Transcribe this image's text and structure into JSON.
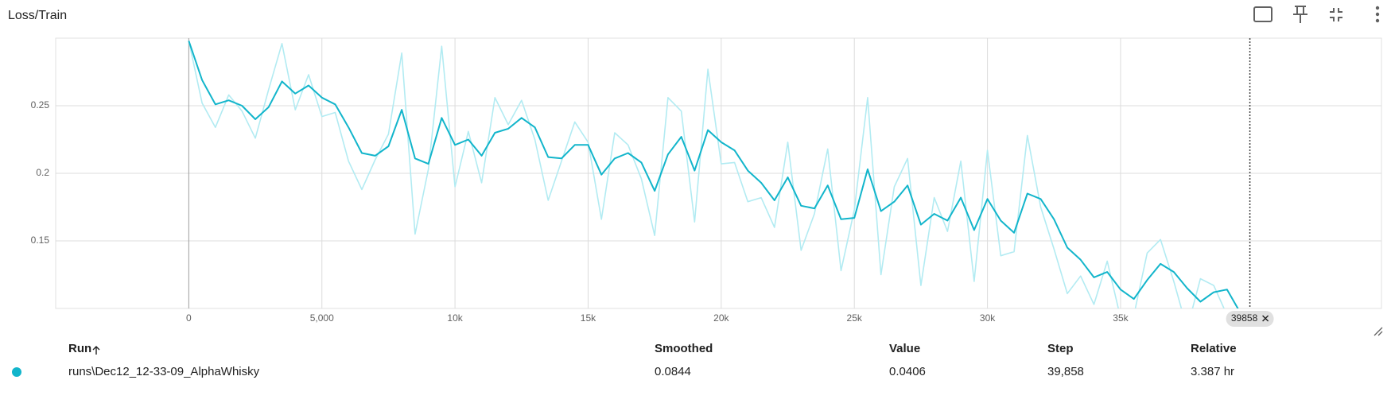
{
  "chart_data": {
    "type": "line",
    "title": "Loss/Train",
    "x": [
      0,
      500,
      1000,
      1500,
      2000,
      2500,
      3000,
      3500,
      4000,
      4500,
      5000,
      5500,
      6000,
      6500,
      7000,
      7500,
      8000,
      8500,
      9000,
      9500,
      10000,
      10500,
      11000,
      11500,
      12000,
      12500,
      13000,
      13500,
      14000,
      14500,
      15000,
      15500,
      16000,
      16500,
      17000,
      17500,
      18000,
      18500,
      19000,
      19500,
      20000,
      20500,
      21000,
      21500,
      22000,
      22500,
      23000,
      23500,
      24000,
      24500,
      25000,
      25500,
      26000,
      26500,
      27000,
      27500,
      28000,
      28500,
      29000,
      29500,
      30000,
      30500,
      31000,
      31500,
      32000,
      32500,
      33000,
      33500,
      34000,
      34500,
      35000,
      35500,
      36000,
      36500,
      37000,
      37500,
      38000,
      38500,
      39000,
      39858
    ],
    "series": [
      {
        "color": "#b2ebf2",
        "values": [
          0.298,
          0.252,
          0.234,
          0.258,
          0.246,
          0.226,
          0.262,
          0.296,
          0.247,
          0.273,
          0.242,
          0.245,
          0.209,
          0.188,
          0.21,
          0.229,
          0.289,
          0.155,
          0.203,
          0.294,
          0.19,
          0.231,
          0.193,
          0.256,
          0.236,
          0.254,
          0.225,
          0.18,
          0.209,
          0.238,
          0.223,
          0.166,
          0.23,
          0.221,
          0.196,
          0.154,
          0.256,
          0.246,
          0.164,
          0.277,
          0.207,
          0.208,
          0.179,
          0.182,
          0.16,
          0.223,
          0.143,
          0.17,
          0.218,
          0.128,
          0.173,
          0.256,
          0.125,
          0.19,
          0.211,
          0.117,
          0.182,
          0.157,
          0.209,
          0.12,
          0.217,
          0.139,
          0.142,
          0.228,
          0.175,
          0.144,
          0.111,
          0.124,
          0.103,
          0.135,
          0.093,
          0.095,
          0.141,
          0.151,
          0.12,
          0.085,
          0.122,
          0.117,
          0.095,
          0.0406
        ]
      },
      {
        "color": "#12b5cb",
        "values": [
          0.298,
          0.269,
          0.251,
          0.254,
          0.25,
          0.24,
          0.249,
          0.268,
          0.259,
          0.265,
          0.256,
          0.251,
          0.234,
          0.215,
          0.213,
          0.22,
          0.247,
          0.211,
          0.207,
          0.241,
          0.221,
          0.225,
          0.213,
          0.23,
          0.233,
          0.241,
          0.234,
          0.212,
          0.211,
          0.221,
          0.221,
          0.199,
          0.211,
          0.215,
          0.208,
          0.187,
          0.214,
          0.227,
          0.202,
          0.232,
          0.223,
          0.217,
          0.202,
          0.193,
          0.18,
          0.197,
          0.176,
          0.174,
          0.191,
          0.166,
          0.167,
          0.203,
          0.172,
          0.179,
          0.191,
          0.162,
          0.17,
          0.165,
          0.182,
          0.158,
          0.181,
          0.165,
          0.156,
          0.185,
          0.181,
          0.166,
          0.145,
          0.136,
          0.123,
          0.127,
          0.114,
          0.107,
          0.121,
          0.133,
          0.127,
          0.115,
          0.105,
          0.112,
          0.114,
          0.0844
        ]
      }
    ],
    "xlim": [
      -5000,
      44800
    ],
    "ylim": [
      0.1,
      0.3
    ],
    "xticks": [
      0,
      {
        "value": 5000,
        "label": "5,000"
      },
      {
        "value": 10000,
        "label": "10k"
      },
      {
        "value": 15000,
        "label": "15k"
      },
      {
        "value": 20000,
        "label": "20k"
      },
      {
        "value": 25000,
        "label": "25k"
      },
      {
        "value": 30000,
        "label": "30k"
      },
      {
        "value": 35000,
        "label": "35k"
      }
    ],
    "yticks": [
      0.15,
      0.2,
      0.25
    ],
    "grid": true,
    "cursor_step": 39858
  },
  "table": {
    "columns": [
      "Run",
      "Smoothed",
      "Value",
      "Step",
      "Relative"
    ],
    "rows": [
      [
        "runs\\Dec12_12-33-09_AlphaWhisky",
        "0.0844",
        "0.0406",
        "39,858",
        "3.387 hr"
      ]
    ]
  }
}
